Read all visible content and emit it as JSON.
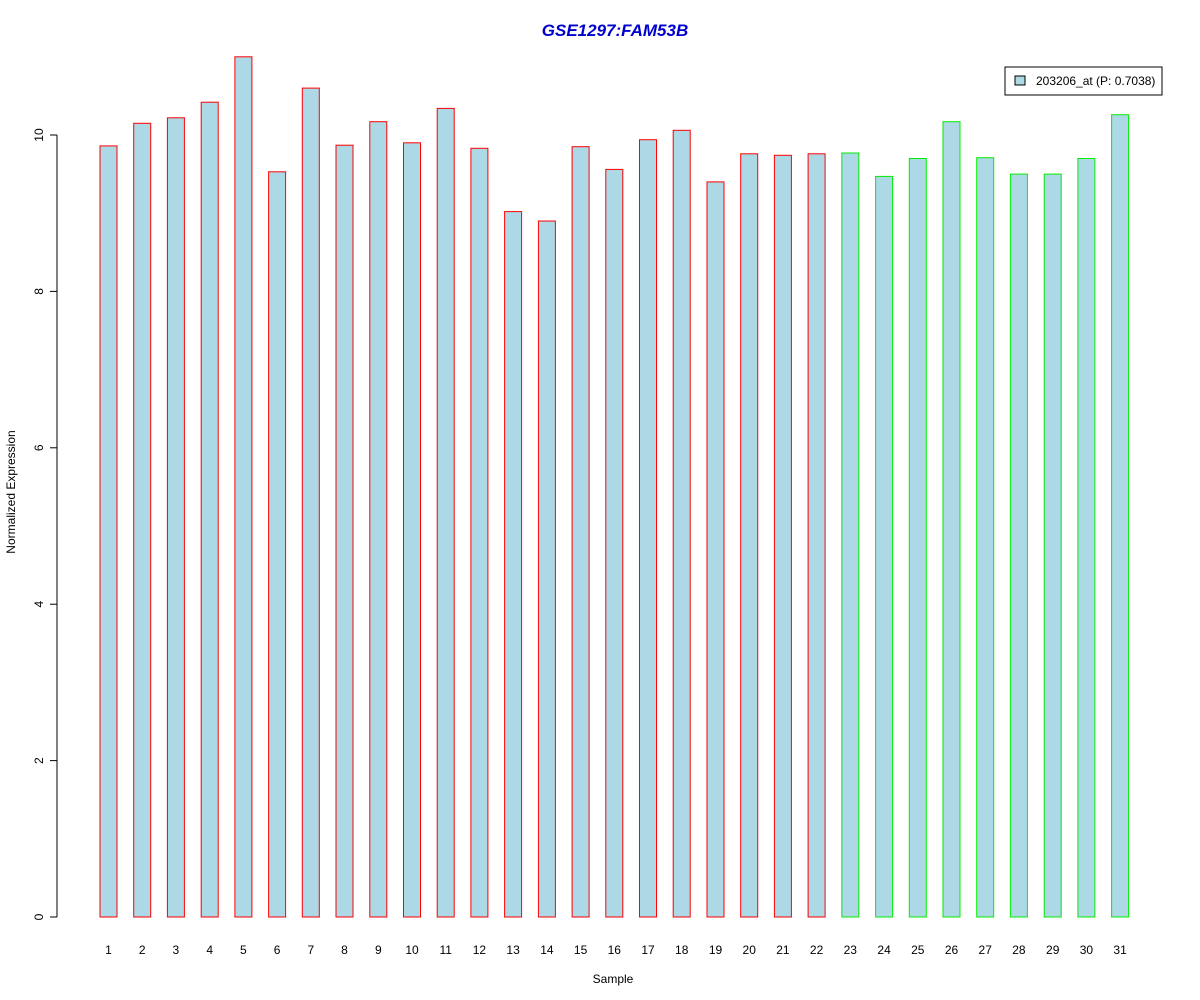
{
  "chart_data": {
    "type": "bar",
    "title": "GSE1297:FAM53B",
    "xlabel": "Sample",
    "ylabel": "Normalized Expression",
    "ylim": [
      0,
      11
    ],
    "yticks": [
      0,
      2,
      4,
      6,
      8,
      10
    ],
    "categories": [
      "1",
      "2",
      "3",
      "4",
      "5",
      "6",
      "7",
      "8",
      "9",
      "10",
      "11",
      "12",
      "13",
      "14",
      "15",
      "16",
      "17",
      "18",
      "19",
      "20",
      "21",
      "22",
      "23",
      "24",
      "25",
      "26",
      "27",
      "28",
      "29",
      "30",
      "31"
    ],
    "series": [
      {
        "name": "203206_at (P: 0.7038)",
        "values": [
          9.86,
          10.15,
          10.22,
          10.42,
          11.0,
          9.53,
          10.6,
          9.87,
          10.17,
          9.9,
          10.34,
          9.83,
          9.02,
          8.9,
          9.85,
          9.56,
          9.94,
          10.06,
          9.4,
          9.76,
          9.74,
          9.76,
          9.77,
          9.47,
          9.7,
          10.17,
          9.71,
          9.5,
          9.5,
          9.7,
          10.26
        ]
      }
    ],
    "bar_fill": "#add8e6",
    "group_colors": {
      "group1": "#ff0000",
      "group2": "#00ee00"
    },
    "group_assignment": [
      1,
      1,
      1,
      1,
      1,
      1,
      1,
      1,
      1,
      1,
      1,
      1,
      1,
      1,
      1,
      1,
      1,
      1,
      1,
      1,
      1,
      1,
      2,
      2,
      2,
      2,
      2,
      2,
      2,
      2,
      2
    ],
    "title_color": "#0000cc",
    "legend_position": "top-right",
    "grid": false
  }
}
